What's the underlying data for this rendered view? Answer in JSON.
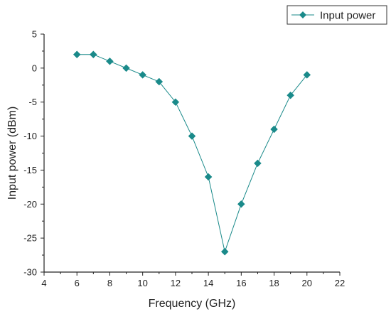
{
  "chart_data": {
    "type": "line",
    "title": "",
    "xlabel": "Frequency (GHz)",
    "ylabel": "Input power (dBm)",
    "xlim": [
      4,
      22
    ],
    "ylim": [
      -30,
      5
    ],
    "xticks": [
      4,
      6,
      8,
      10,
      12,
      14,
      16,
      18,
      20,
      22
    ],
    "yticks": [
      5,
      0,
      -5,
      -10,
      -15,
      -20,
      -25,
      -30
    ],
    "legend_placement": "top-right-outside",
    "grid": false,
    "series": [
      {
        "name": "Input power",
        "color": "#1a8a8a",
        "marker": "diamond",
        "x": [
          6,
          7,
          8,
          9,
          10,
          11,
          12,
          13,
          14,
          15,
          16,
          17,
          18,
          19,
          20
        ],
        "y": [
          2,
          2,
          1,
          0,
          -1,
          -2,
          -5,
          -10,
          -16,
          -27,
          -20,
          -14,
          -9,
          -4,
          -1
        ]
      }
    ]
  }
}
